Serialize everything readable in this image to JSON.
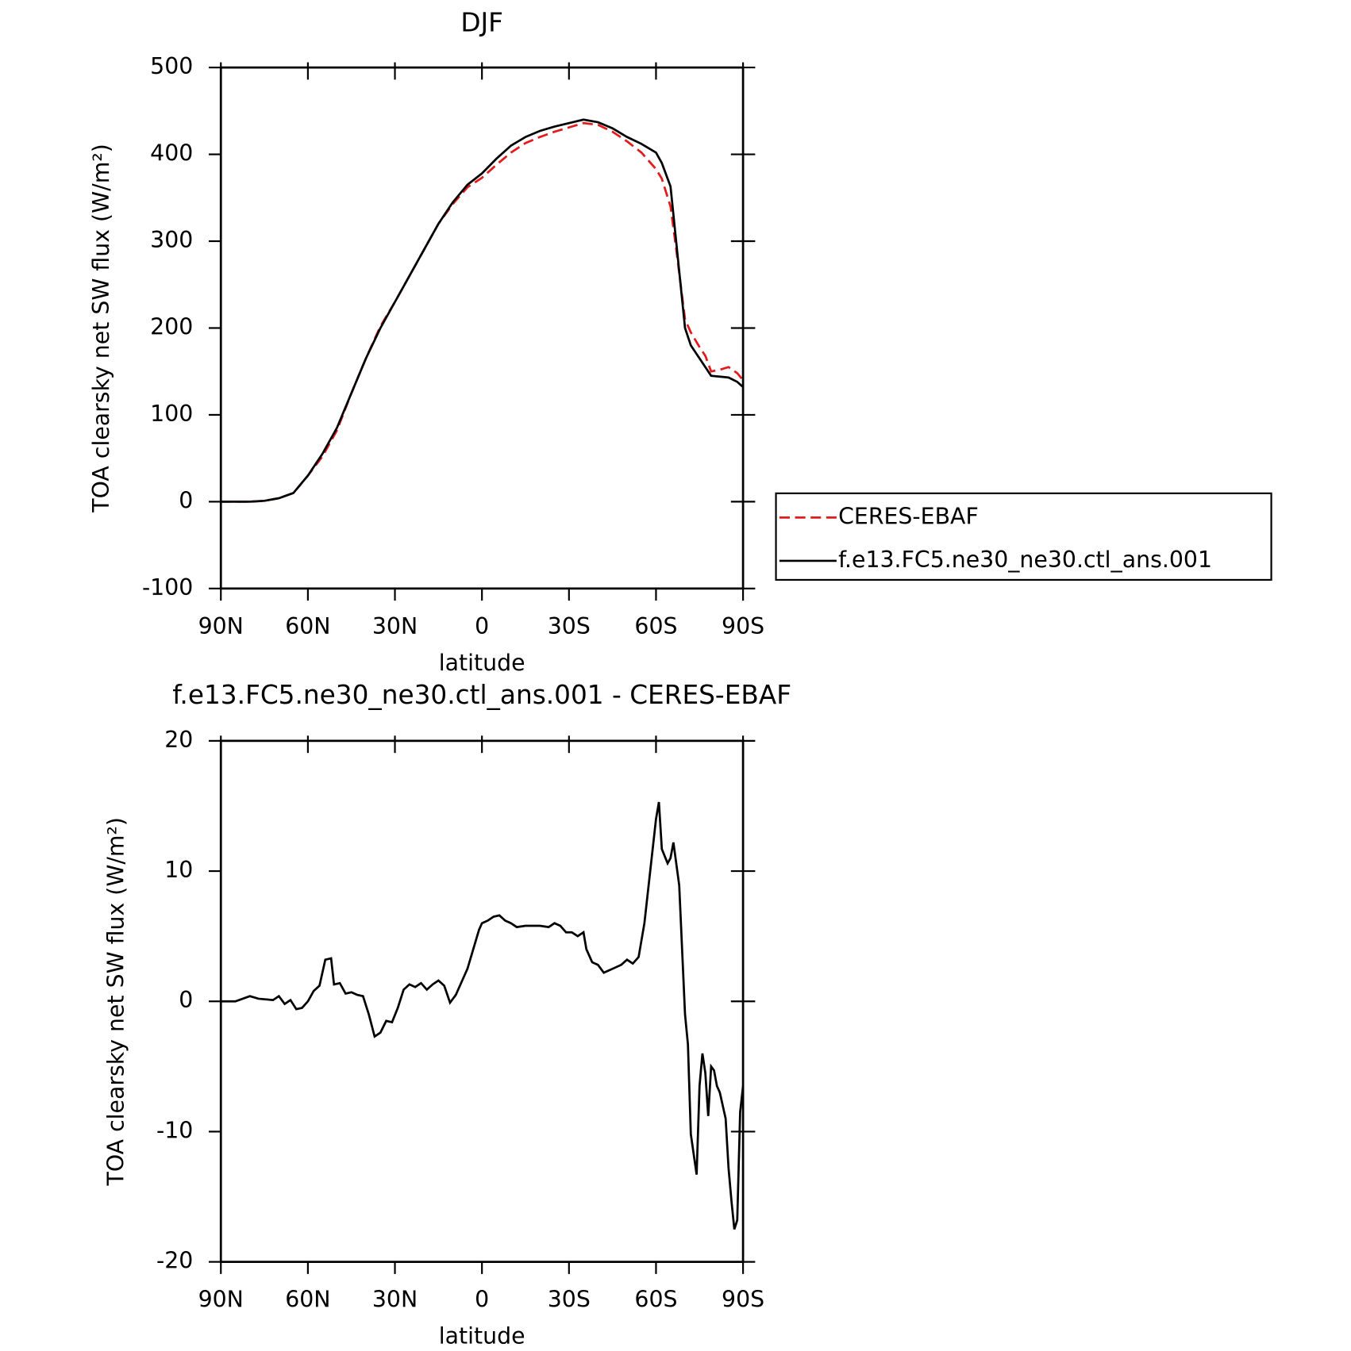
{
  "chart_data": [
    {
      "type": "line",
      "title": "DJF",
      "xlabel": "latitude",
      "ylabel": "TOA clearsky net SW flux (W/m²)",
      "x": [
        90,
        85,
        80,
        75,
        70,
        65,
        60,
        55,
        50,
        45,
        40,
        35,
        30,
        25,
        20,
        15,
        10,
        5,
        0,
        -5,
        -10,
        -15,
        -20,
        -25,
        -30,
        -35,
        -40,
        -45,
        -50,
        -55,
        -60,
        -62,
        -65,
        -67,
        -70,
        -72,
        -75,
        -77,
        -79,
        -82,
        -85,
        -88,
        -90
      ],
      "series": [
        {
          "name": "CERES-EBAF",
          "color": "#e41a1c",
          "style": "dashed",
          "values": [
            0,
            0,
            0,
            1,
            4,
            10,
            30,
            52,
            82,
            125,
            165,
            202,
            230,
            260,
            290,
            320,
            343,
            362,
            373,
            388,
            402,
            413,
            420,
            426,
            431,
            436,
            434,
            426,
            415,
            402,
            383,
            372,
            340,
            290,
            210,
            195,
            178,
            168,
            150,
            152,
            155,
            148,
            140
          ]
        },
        {
          "name": "f.e13.FC5.ne30_ne30.ctl_ans.001",
          "color": "#000000",
          "style": "solid",
          "values": [
            0,
            0,
            0,
            1,
            4,
            10,
            30,
            55,
            85,
            125,
            165,
            200,
            230,
            260,
            290,
            320,
            345,
            365,
            378,
            395,
            410,
            420,
            427,
            432,
            436,
            440,
            437,
            430,
            420,
            412,
            402,
            390,
            363,
            298,
            200,
            180,
            165,
            155,
            145,
            144,
            143,
            138,
            132
          ]
        }
      ],
      "xlim": [
        90,
        -90
      ],
      "ylim": [
        -100,
        500
      ],
      "xticks": [
        {
          "value": 90,
          "label": "90N"
        },
        {
          "value": 60,
          "label": "60N"
        },
        {
          "value": 30,
          "label": "30N"
        },
        0,
        {
          "value": -30,
          "label": "30S"
        },
        {
          "value": -60,
          "label": "60S"
        },
        {
          "value": -90,
          "label": "90S"
        }
      ],
      "yticks": [
        -100,
        0,
        100,
        200,
        300,
        400,
        500
      ],
      "legend": "right"
    },
    {
      "type": "line",
      "title": "f.e13.FC5.ne30_ne30.ctl_ans.001 - CERES-EBAF",
      "xlabel": "latitude",
      "ylabel": "TOA clearsky net SW flux (W/m²)",
      "x": [
        90,
        85,
        80,
        77,
        72,
        70,
        68,
        66,
        64,
        62,
        60,
        58,
        56,
        54,
        52,
        51,
        49,
        47,
        45,
        43,
        41,
        39,
        37,
        35,
        33,
        31,
        29,
        27,
        25,
        23,
        21,
        19,
        17,
        15,
        13,
        11,
        9,
        7,
        5,
        3,
        1,
        0,
        -2,
        -4,
        -6,
        -8,
        -10,
        -12,
        -15,
        -20,
        -23,
        -25,
        -27,
        -29,
        -31,
        -33,
        -35,
        -36,
        -38,
        -40,
        -42,
        -44,
        -46,
        -48,
        -50,
        -52,
        -54,
        -56,
        -58,
        -60,
        -61,
        -62,
        -64,
        -65,
        -66,
        -68,
        -70,
        -71,
        -72,
        -74,
        -75,
        -76,
        -77,
        -78,
        -79,
        -80,
        -81,
        -82,
        -84,
        -85,
        -86,
        -87,
        -88,
        -89,
        -90
      ],
      "series": [
        {
          "color": "#000000",
          "style": "solid",
          "values": [
            0,
            0,
            0.4,
            0.2,
            0.1,
            0.4,
            -0.2,
            0.1,
            -0.6,
            -0.5,
            0,
            0.8,
            1.2,
            3.2,
            3.3,
            1.3,
            1.4,
            0.6,
            0.7,
            0.5,
            0.4,
            -1.0,
            -2.7,
            -2.4,
            -1.5,
            -1.6,
            -0.5,
            0.9,
            1.3,
            1.1,
            1.4,
            0.9,
            1.3,
            1.6,
            1.2,
            -0.1,
            0.5,
            1.5,
            2.5,
            4.0,
            5.5,
            6.0,
            6.2,
            6.5,
            6.6,
            6.2,
            6.0,
            5.7,
            5.8,
            5.8,
            5.7,
            6.0,
            5.8,
            5.3,
            5.3,
            5.0,
            5.3,
            4.0,
            3.0,
            2.8,
            2.2,
            2.4,
            2.6,
            2.8,
            3.2,
            2.9,
            3.4,
            6.0,
            10.0,
            14.0,
            15.3,
            11.7,
            10.6,
            11.0,
            12.2,
            8.9,
            -1.0,
            -3.3,
            -10.2,
            -13.3,
            -6.5,
            -4.0,
            -5.5,
            -8.8,
            -5.0,
            -5.3,
            -6.5,
            -7.0,
            -9.0,
            -12.8,
            -15.3,
            -17.5,
            -16.8,
            -8.5,
            -6.5
          ]
        }
      ],
      "xlim": [
        90,
        -90
      ],
      "ylim": [
        -20,
        20
      ],
      "xticks": [
        {
          "value": 90,
          "label": "90N"
        },
        {
          "value": 60,
          "label": "60N"
        },
        {
          "value": 30,
          "label": "30N"
        },
        0,
        {
          "value": -30,
          "label": "30S"
        },
        {
          "value": -60,
          "label": "60S"
        },
        {
          "value": -90,
          "label": "90S"
        }
      ],
      "yticks": [
        -20,
        -10,
        0,
        10,
        20
      ]
    }
  ]
}
